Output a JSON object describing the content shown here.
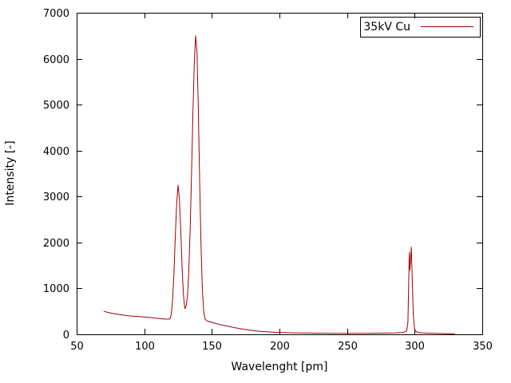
{
  "chart_data": {
    "type": "line",
    "title": "",
    "xlabel": "Wavelenght [pm]",
    "ylabel": "Intensity [-]",
    "xlim": [
      50,
      350
    ],
    "ylim": [
      0,
      7000
    ],
    "xticks": [
      50,
      100,
      150,
      200,
      250,
      300,
      350
    ],
    "yticks": [
      0,
      1000,
      2000,
      3000,
      4000,
      5000,
      6000,
      7000
    ],
    "grid": false,
    "legend_position": "top-right",
    "background_color": "#ffffff",
    "border_color": "#000000",
    "series": [
      {
        "name": "35kV Cu",
        "color": "#a00000",
        "points": [
          [
            70,
            500
          ],
          [
            74,
            470
          ],
          [
            78,
            448
          ],
          [
            82,
            430
          ],
          [
            86,
            413
          ],
          [
            90,
            400
          ],
          [
            94,
            390
          ],
          [
            98,
            382
          ],
          [
            102,
            373
          ],
          [
            106,
            362
          ],
          [
            110,
            348
          ],
          [
            113,
            338
          ],
          [
            116,
            332
          ],
          [
            118,
            330
          ],
          [
            119,
            335
          ],
          [
            120,
            430
          ],
          [
            121,
            760
          ],
          [
            122,
            1350
          ],
          [
            123,
            2150
          ],
          [
            124,
            2850
          ],
          [
            125,
            3250
          ],
          [
            126,
            2950
          ],
          [
            127,
            2250
          ],
          [
            128,
            1450
          ],
          [
            129,
            850
          ],
          [
            130,
            560
          ],
          [
            131,
            620
          ],
          [
            132,
            850
          ],
          [
            133,
            1400
          ],
          [
            134,
            2300
          ],
          [
            135,
            3500
          ],
          [
            136,
            4800
          ],
          [
            137,
            5900
          ],
          [
            138,
            6500
          ],
          [
            139,
            6150
          ],
          [
            140,
            4900
          ],
          [
            141,
            3300
          ],
          [
            142,
            1900
          ],
          [
            143,
            950
          ],
          [
            144,
            480
          ],
          [
            145,
            330
          ],
          [
            146,
            300
          ],
          [
            148,
            278
          ],
          [
            150,
            260
          ],
          [
            154,
            228
          ],
          [
            158,
            200
          ],
          [
            162,
            175
          ],
          [
            166,
            150
          ],
          [
            170,
            128
          ],
          [
            174,
            108
          ],
          [
            178,
            92
          ],
          [
            182,
            78
          ],
          [
            186,
            66
          ],
          [
            190,
            57
          ],
          [
            195,
            48
          ],
          [
            200,
            42
          ],
          [
            205,
            37
          ],
          [
            210,
            33
          ],
          [
            215,
            30
          ],
          [
            220,
            28
          ],
          [
            225,
            26
          ],
          [
            230,
            25
          ],
          [
            235,
            24
          ],
          [
            240,
            23
          ],
          [
            245,
            22
          ],
          [
            250,
            22
          ],
          [
            255,
            22
          ],
          [
            260,
            22
          ],
          [
            265,
            23
          ],
          [
            270,
            24
          ],
          [
            275,
            26
          ],
          [
            280,
            28
          ],
          [
            285,
            32
          ],
          [
            290,
            38
          ],
          [
            292,
            45
          ],
          [
            294,
            70
          ],
          [
            295,
            260
          ],
          [
            296,
            1780
          ],
          [
            296.5,
            1400
          ],
          [
            297.5,
            1900
          ],
          [
            298,
            1450
          ],
          [
            299,
            420
          ],
          [
            300,
            110
          ],
          [
            301,
            60
          ],
          [
            303,
            42
          ],
          [
            306,
            32
          ],
          [
            310,
            26
          ],
          [
            315,
            21
          ],
          [
            320,
            17
          ],
          [
            325,
            12
          ],
          [
            328,
            8
          ],
          [
            330,
            5
          ]
        ]
      }
    ]
  }
}
